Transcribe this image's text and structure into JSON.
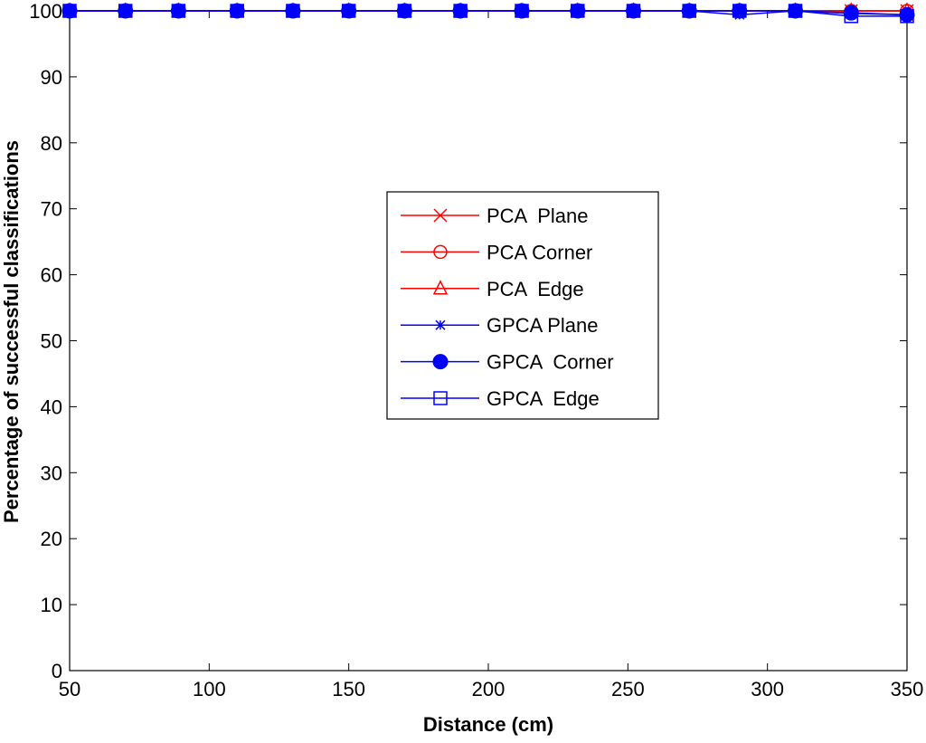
{
  "chart_data": {
    "type": "line",
    "title": "",
    "xlabel": "Distance (cm)",
    "ylabel": "Percentage of successful classifications",
    "xlim": [
      50,
      350
    ],
    "ylim": [
      0,
      100
    ],
    "xticks": [
      50,
      100,
      150,
      200,
      250,
      300,
      350
    ],
    "yticks": [
      0,
      10,
      20,
      30,
      40,
      50,
      60,
      70,
      80,
      90,
      100
    ],
    "grid": false,
    "legend_position": "center",
    "x": [
      50,
      70,
      89,
      110,
      130,
      150,
      170,
      190,
      212,
      232,
      252,
      272,
      290,
      310,
      330,
      350
    ],
    "series": [
      {
        "name": "PCA  Plane",
        "color": "#ff0000",
        "marker": "x",
        "values": [
          100,
          100,
          100,
          100,
          100,
          100,
          100,
          100,
          100,
          100,
          100,
          100,
          100,
          100,
          100,
          100
        ]
      },
      {
        "name": "PCA Corner",
        "color": "#ff0000",
        "marker": "circle",
        "values": [
          100,
          100,
          100,
          100,
          100,
          100,
          100,
          100,
          100,
          100,
          100,
          100,
          100,
          100,
          100,
          100
        ]
      },
      {
        "name": "PCA  Edge",
        "color": "#ff0000",
        "marker": "triangle",
        "values": [
          100,
          100,
          100,
          100,
          100,
          100,
          100,
          100,
          100,
          100,
          100,
          100,
          100,
          100,
          100,
          100
        ]
      },
      {
        "name": "GPCA Plane",
        "color": "#0000ff",
        "marker": "star",
        "values": [
          100,
          100,
          100,
          100,
          100,
          100,
          100,
          100,
          100,
          100,
          100,
          100,
          99.4,
          100,
          99.6,
          99.4
        ]
      },
      {
        "name": "GPCA  Corner",
        "color": "#0000ff",
        "marker": "filled-circle",
        "values": [
          100,
          100,
          100,
          100,
          100,
          100,
          100,
          100,
          100,
          100,
          100,
          100,
          100,
          100,
          99.7,
          99.4
        ]
      },
      {
        "name": "GPCA  Edge",
        "color": "#0000ff",
        "marker": "square",
        "values": [
          100,
          100,
          100,
          100,
          100,
          100,
          100,
          100,
          100,
          100,
          100,
          100,
          100,
          100,
          99.2,
          99.2
        ]
      }
    ]
  }
}
